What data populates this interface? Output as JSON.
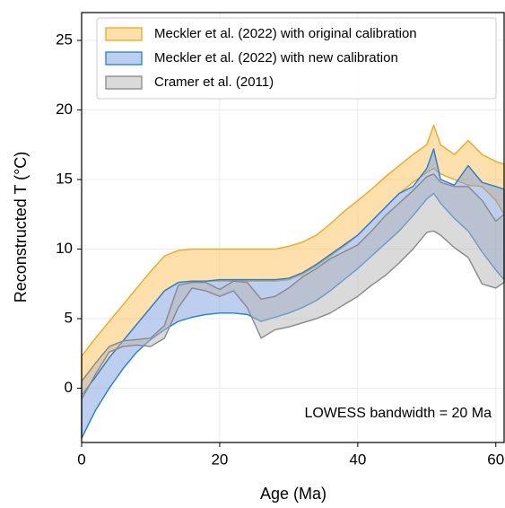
{
  "chart_data": {
    "type": "band",
    "xlabel": "Age (Ma)",
    "ylabel": "Reconstructed T (°C)",
    "annotation": "LOWESS bandwidth = 20 Ma",
    "xlim": [
      0,
      61.2
    ],
    "ylim": [
      -3.9,
      27
    ],
    "xticks": [
      0,
      20,
      40,
      60
    ],
    "yticks": [
      0,
      5,
      10,
      15,
      20,
      25
    ],
    "grid": true,
    "legend": "upper right",
    "x": [
      0,
      2,
      4,
      6,
      8,
      10,
      12,
      14,
      16,
      18,
      20,
      22,
      24,
      26,
      28,
      30,
      32,
      34,
      36,
      38,
      40,
      42,
      44,
      46,
      48,
      50,
      51,
      52,
      54,
      56,
      58,
      60,
      61.2
    ],
    "series": [
      {
        "name": "Meckler et al. (2022) with original calibration",
        "color": "#f0a81a",
        "fill": "#fbc25a",
        "upper": [
          2.3,
          3.6,
          4.8,
          6.0,
          7.2,
          8.4,
          9.5,
          9.9,
          10.0,
          10.0,
          10.0,
          10.0,
          10.0,
          10.0,
          10.0,
          10.2,
          10.5,
          11.0,
          11.8,
          12.7,
          13.5,
          14.3,
          15.2,
          16.0,
          16.8,
          17.5,
          18.9,
          17.5,
          16.8,
          17.8,
          16.8,
          16.3,
          16.1
        ],
        "lower": [
          -0.5,
          0.8,
          2.2,
          3.4,
          4.6,
          5.8,
          7.0,
          7.6,
          7.7,
          7.7,
          7.7,
          7.7,
          7.7,
          7.7,
          7.7,
          7.8,
          8.2,
          8.8,
          9.5,
          10.2,
          11.0,
          12.0,
          13.0,
          14.0,
          14.8,
          15.5,
          15.8,
          15.4,
          15.0,
          14.6,
          14.5,
          13.5,
          12.5
        ]
      },
      {
        "name": "Meckler et al. (2022) with new calibration",
        "color": "#1f7fd8",
        "fill": "#7e9ede",
        "upper": [
          -0.5,
          0.8,
          2.2,
          3.4,
          4.6,
          5.8,
          7.0,
          7.6,
          7.7,
          7.7,
          7.8,
          7.8,
          7.8,
          7.8,
          7.8,
          7.9,
          8.3,
          8.9,
          9.6,
          10.3,
          11.0,
          12.0,
          13.0,
          14.0,
          14.5,
          15.8,
          17.2,
          15.0,
          14.6,
          16.0,
          14.8,
          14.5,
          14.3
        ],
        "lower": [
          -3.6,
          -1.6,
          0.0,
          1.4,
          2.6,
          3.5,
          4.2,
          4.8,
          5.1,
          5.3,
          5.4,
          5.4,
          5.3,
          4.8,
          5.1,
          5.4,
          5.8,
          6.3,
          7.0,
          7.8,
          8.6,
          9.5,
          10.4,
          11.3,
          12.4,
          13.6,
          14.0,
          13.3,
          12.2,
          11.3,
          9.8,
          8.5,
          7.8
        ]
      },
      {
        "name": "Cramer et al. (2011)",
        "color": "#888888",
        "fill": "#b5b5b5",
        "upper": [
          0.5,
          1.8,
          3.0,
          3.4,
          3.5,
          3.6,
          4.5,
          7.4,
          7.6,
          7.6,
          7.1,
          7.7,
          7.6,
          6.4,
          6.6,
          7.2,
          8.0,
          8.6,
          9.3,
          9.8,
          10.3,
          11.3,
          12.4,
          13.3,
          14.2,
          15.2,
          15.4,
          14.8,
          14.5,
          14.5,
          13.5,
          12.0,
          12.5
        ],
        "lower": [
          -0.8,
          1.0,
          2.6,
          3.0,
          3.1,
          3.0,
          3.6,
          5.8,
          7.2,
          7.0,
          6.6,
          7.0,
          5.8,
          3.6,
          4.2,
          4.4,
          4.7,
          5.0,
          5.4,
          6.0,
          6.6,
          7.4,
          8.1,
          9.0,
          10.0,
          11.2,
          11.3,
          11.0,
          10.1,
          9.4,
          7.5,
          7.2,
          7.6
        ]
      }
    ]
  }
}
